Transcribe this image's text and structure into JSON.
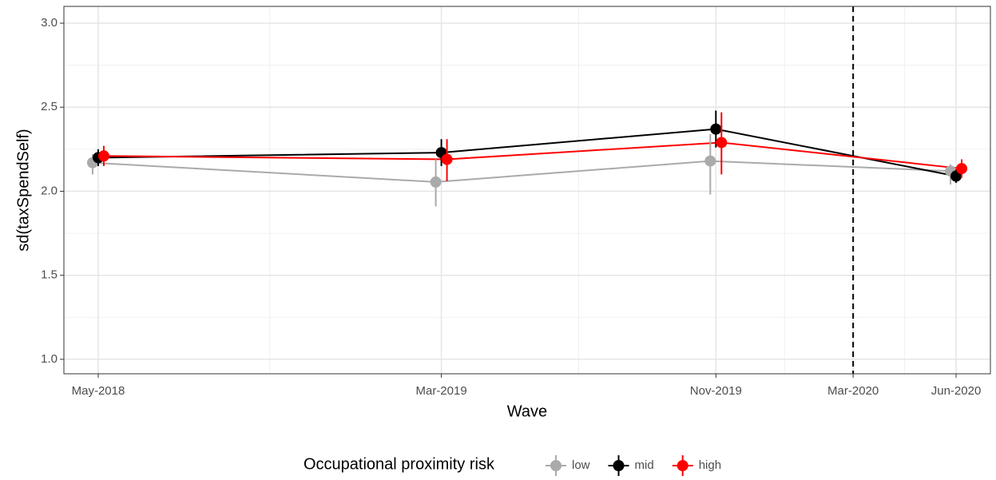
{
  "chart_data": {
    "type": "line",
    "x_label": "Wave",
    "y_label": "sd(taxSpendSelf)",
    "x": [
      "2018-05",
      "2019-03",
      "2019-11",
      "2020-06"
    ],
    "series": [
      {
        "name": "low",
        "color": "#aaaaaa",
        "values": [
          2.17,
          2.055,
          2.18,
          2.12
        ],
        "lower": [
          2.1,
          1.91,
          1.98,
          2.04
        ],
        "upper": [
          2.22,
          2.19,
          2.34,
          2.16
        ]
      },
      {
        "name": "mid",
        "color": "#000000",
        "values": [
          2.2,
          2.23,
          2.37,
          2.09
        ],
        "lower": [
          2.15,
          2.15,
          2.26,
          2.05
        ],
        "upper": [
          2.25,
          2.31,
          2.48,
          2.13
        ]
      },
      {
        "name": "high",
        "color": "#ff0000",
        "values": [
          2.21,
          2.19,
          2.29,
          2.135
        ],
        "lower": [
          2.15,
          2.06,
          2.1,
          2.08
        ],
        "upper": [
          2.27,
          2.31,
          2.47,
          2.19
        ]
      }
    ],
    "xlim": [
      "2018-04",
      "2020-07"
    ],
    "xticks": [
      {
        "value": "2018-05",
        "label": "May-2018"
      },
      {
        "value": "2019-03",
        "label": "Mar-2019"
      },
      {
        "value": "2019-11",
        "label": "Nov-2019"
      },
      {
        "value": "2020-03",
        "label": "Mar-2020"
      },
      {
        "value": "2020-06",
        "label": "Jun-2020"
      }
    ],
    "vline": "2020-03",
    "ylim": [
      0.914,
      3.1
    ],
    "yticks": [
      {
        "value": 1,
        "label": "1.0"
      },
      {
        "value": 1.5,
        "label": "1.5"
      },
      {
        "value": 2,
        "label": "2.0"
      },
      {
        "value": 2.5,
        "label": "2.5"
      },
      {
        "value": 3,
        "label": "3.0"
      }
    ],
    "grid": true,
    "legend_title": "Occupational proximity risk",
    "legend_position": "bottom"
  }
}
